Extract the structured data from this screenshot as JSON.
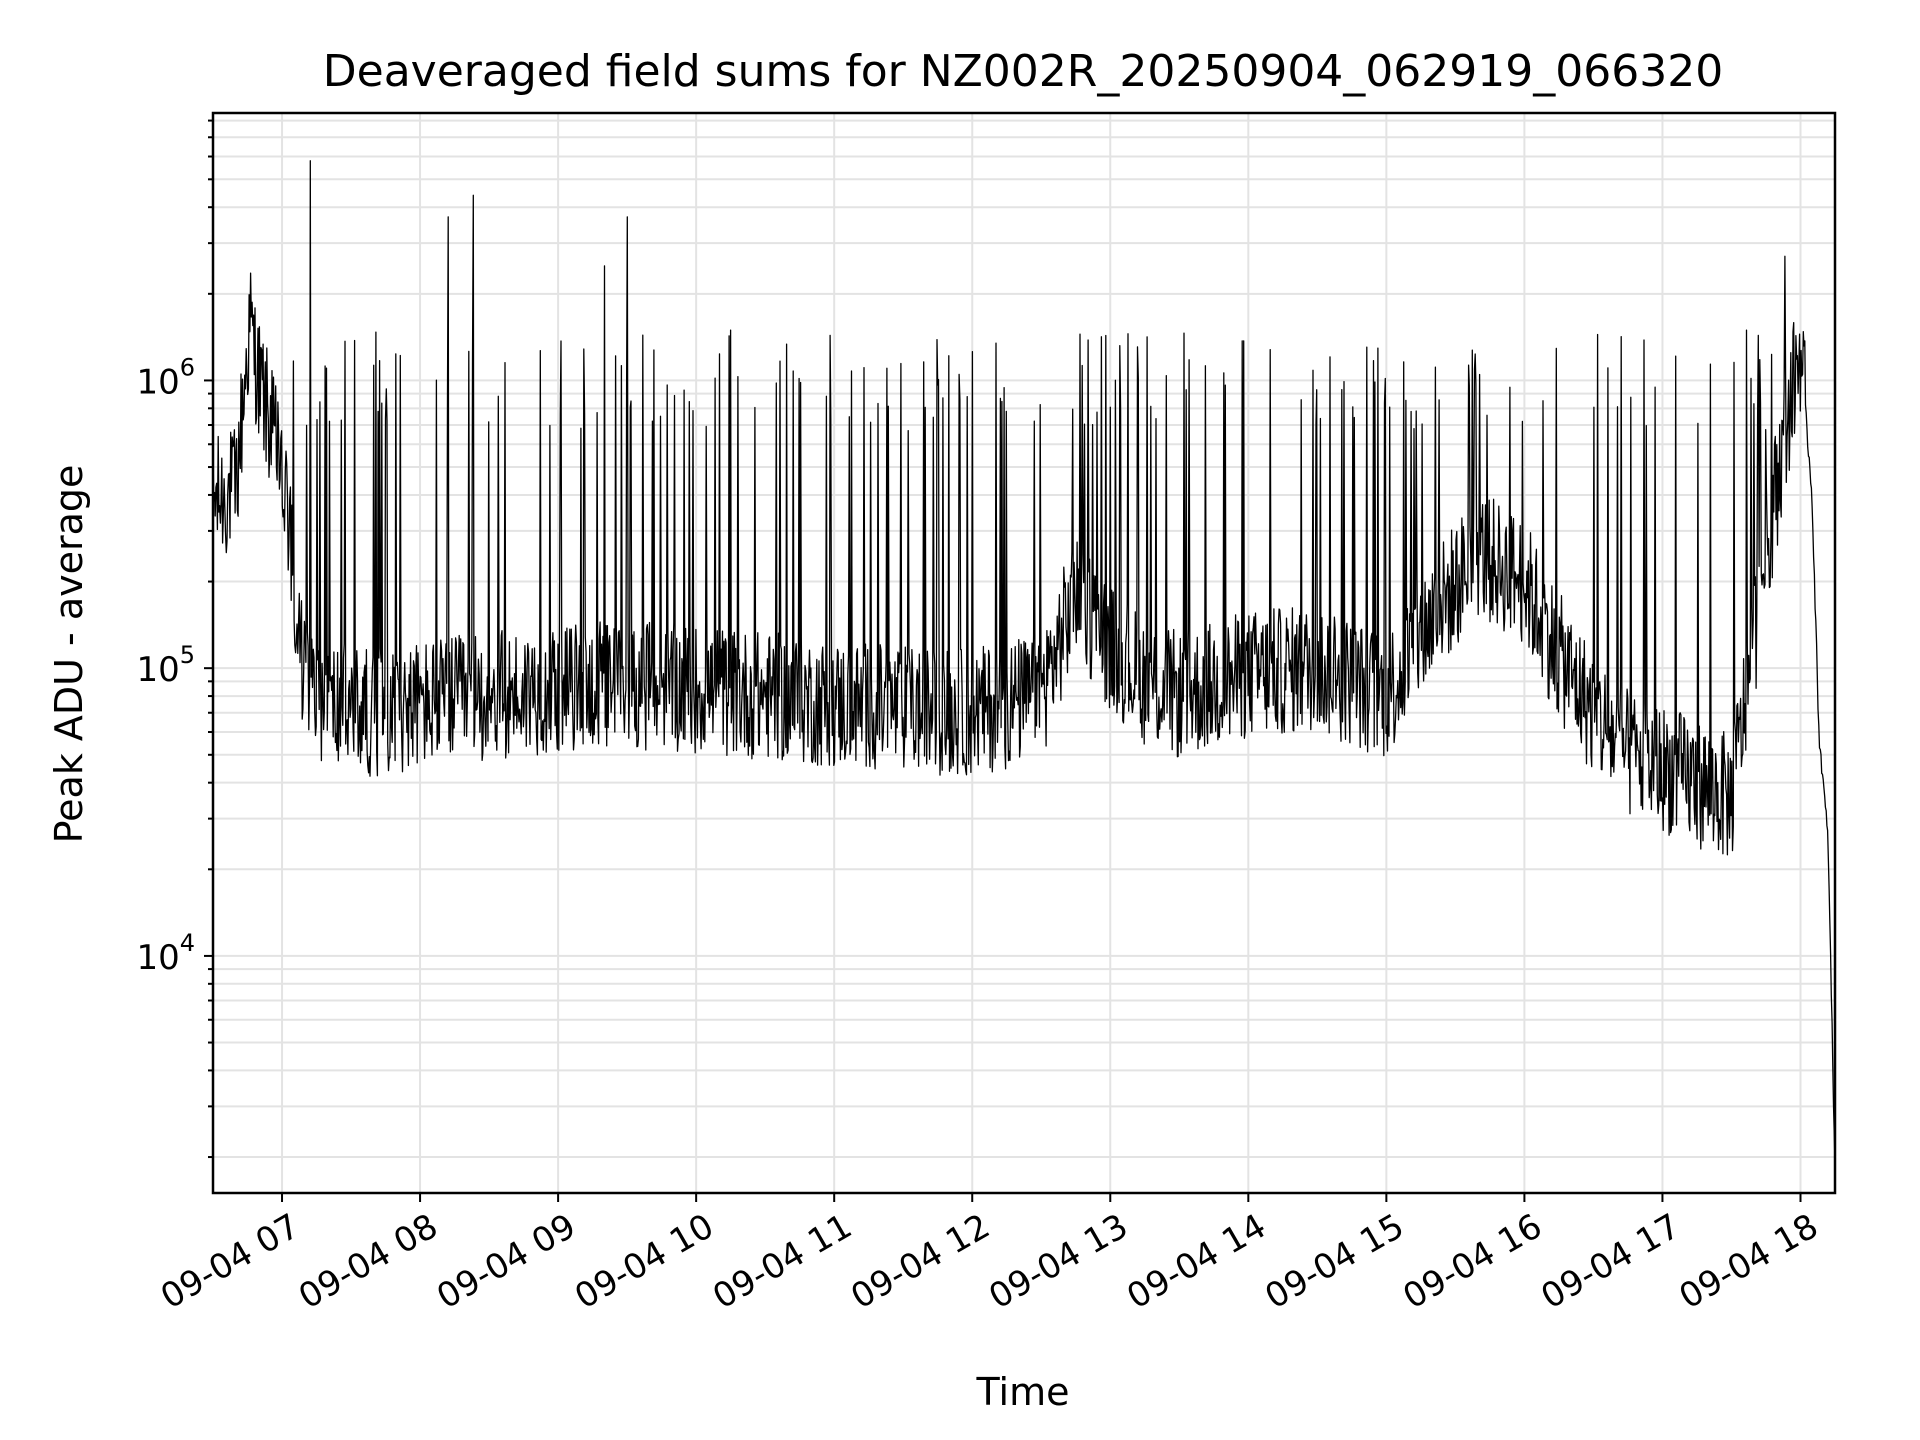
{
  "chart_data": {
    "type": "line",
    "title": "Deaveraged field sums for NZ002R_20250904_062919_066320",
    "xlabel": "Time",
    "ylabel": "Peak ADU - average",
    "y_scale": "log",
    "grid": true,
    "series_color": "#000000",
    "x_ticks": [
      "09-04 07",
      "09-04 08",
      "09-04 09",
      "09-04 10",
      "09-04 11",
      "09-04 12",
      "09-04 13",
      "09-04 14",
      "09-04 15",
      "09-04 16",
      "09-04 17",
      "09-04 18"
    ],
    "x_range": [
      "09-04 06:30",
      "09-04 18:15"
    ],
    "ylim": [
      1500,
      8500000
    ],
    "y_ticks": [
      {
        "value": 10000,
        "base": "10",
        "exp": "4"
      },
      {
        "value": 100000,
        "base": "10",
        "exp": "5"
      },
      {
        "value": 1000000,
        "base": "10",
        "exp": "6"
      }
    ],
    "series": [
      {
        "x": [
          "09-04 06:30",
          "09-04 06:40",
          "09-04 06:46",
          "09-04 06:50",
          "09-04 06:55",
          "09-04 07:00",
          "09-04 07:03",
          "09-04 07:06",
          "09-04 07:10",
          "09-04 07:20",
          "09-04 07:40",
          "09-04 08:00",
          "09-04 08:30",
          "09-04 09:00",
          "09-04 09:30",
          "09-04 10:00",
          "09-04 10:30",
          "09-04 11:00",
          "09-04 11:30",
          "09-04 12:00",
          "09-04 12:30",
          "09-04 12:45",
          "09-04 13:00",
          "09-04 13:15",
          "09-04 13:30",
          "09-04 14:00",
          "09-04 14:30",
          "09-04 15:00",
          "09-04 15:20",
          "09-04 15:40",
          "09-04 16:00",
          "09-04 16:15",
          "09-04 16:30",
          "09-04 16:45",
          "09-04 17:00",
          "09-04 17:15",
          "09-04 17:30",
          "09-04 17:45",
          "09-04 17:55",
          "09-04 18:00",
          "09-04 18:05",
          "09-04 18:08",
          "09-04 18:12",
          "09-04 18:15"
        ],
        "y": [
          380000,
          420000,
          1600000,
          1000000,
          700000,
          500000,
          300000,
          150000,
          90000,
          75000,
          70000,
          75000,
          80000,
          85000,
          88000,
          85000,
          80000,
          75000,
          72000,
          70000,
          80000,
          180000,
          120000,
          90000,
          80000,
          95000,
          100000,
          80000,
          150000,
          250000,
          200000,
          110000,
          70000,
          50000,
          45000,
          40000,
          35000,
          250000,
          800000,
          1300000,
          400000,
          60000,
          25000,
          1800
        ]
      }
    ],
    "annotations_peaks": [
      {
        "x": "09-04 07:12",
        "y": 5800000
      },
      {
        "x": "09-04 08:12",
        "y": 3700000
      },
      {
        "x": "09-04 08:23",
        "y": 4400000
      },
      {
        "x": "09-04 09:20",
        "y": 2500000
      },
      {
        "x": "09-04 09:30",
        "y": 3700000
      },
      {
        "x": "09-04 17:53",
        "y": 2700000
      }
    ]
  }
}
